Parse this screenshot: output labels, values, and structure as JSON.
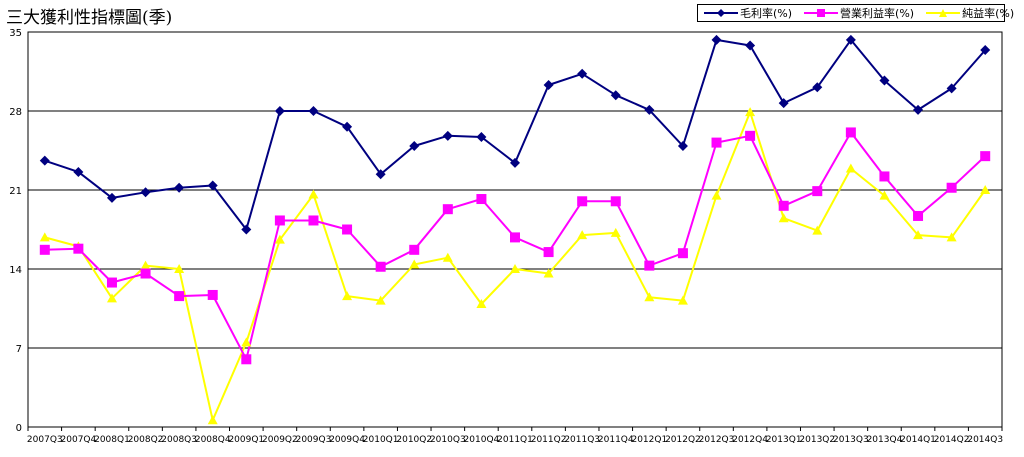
{
  "chart_data": {
    "type": "line",
    "title": "三大獲利性指標圖(季)",
    "categories": [
      "2007Q3",
      "2007Q4",
      "2008Q1",
      "2008Q2",
      "2008Q3",
      "2008Q4",
      "2009Q1",
      "2009Q2",
      "2009Q3",
      "2009Q4",
      "2010Q1",
      "2010Q2",
      "2010Q3",
      "2010Q4",
      "2011Q1",
      "2011Q2",
      "2011Q3",
      "2011Q4",
      "2012Q1",
      "2012Q2",
      "2012Q3",
      "2012Q4",
      "2013Q1",
      "2013Q2",
      "2013Q3",
      "2013Q4",
      "2014Q1",
      "2014Q2",
      "2014Q3"
    ],
    "series": [
      {
        "name": "毛利率(%)",
        "color": "#000080",
        "marker": "diamond",
        "values": [
          23.6,
          22.6,
          20.3,
          20.8,
          21.2,
          21.4,
          17.5,
          28.0,
          28.0,
          26.6,
          22.4,
          24.9,
          25.8,
          25.7,
          23.4,
          30.3,
          31.3,
          29.4,
          28.1,
          24.9,
          34.3,
          33.8,
          28.7,
          30.1,
          34.3,
          30.7,
          28.1,
          30.0,
          33.4
        ]
      },
      {
        "name": "營業利益率(%)",
        "color": "#ff00ff",
        "marker": "square",
        "values": [
          15.7,
          15.8,
          12.8,
          13.6,
          11.6,
          11.7,
          6.0,
          18.3,
          18.3,
          17.5,
          14.2,
          15.7,
          19.3,
          20.2,
          16.8,
          15.5,
          20.0,
          20.0,
          14.3,
          15.4,
          25.2,
          25.8,
          19.6,
          20.9,
          26.1,
          22.2,
          18.7,
          21.2,
          24.0
        ]
      },
      {
        "name": "純益率(%)",
        "color": "#ffff00",
        "marker": "triangle",
        "values": [
          16.8,
          16.0,
          11.4,
          14.3,
          14.0,
          0.6,
          7.5,
          16.6,
          20.6,
          11.6,
          11.2,
          14.4,
          15.0,
          10.9,
          14.0,
          13.6,
          17.0,
          17.2,
          11.5,
          11.2,
          20.5,
          27.9,
          18.5,
          17.4,
          22.9,
          20.5,
          17.0,
          16.8,
          21.0
        ]
      }
    ],
    "yticks": [
      "0",
      "7",
      "14",
      "21",
      "28",
      "35"
    ],
    "ylim": [
      0,
      35
    ],
    "xlabel": "",
    "ylabel": "",
    "grid": "horizontal",
    "legend": "top-right"
  }
}
